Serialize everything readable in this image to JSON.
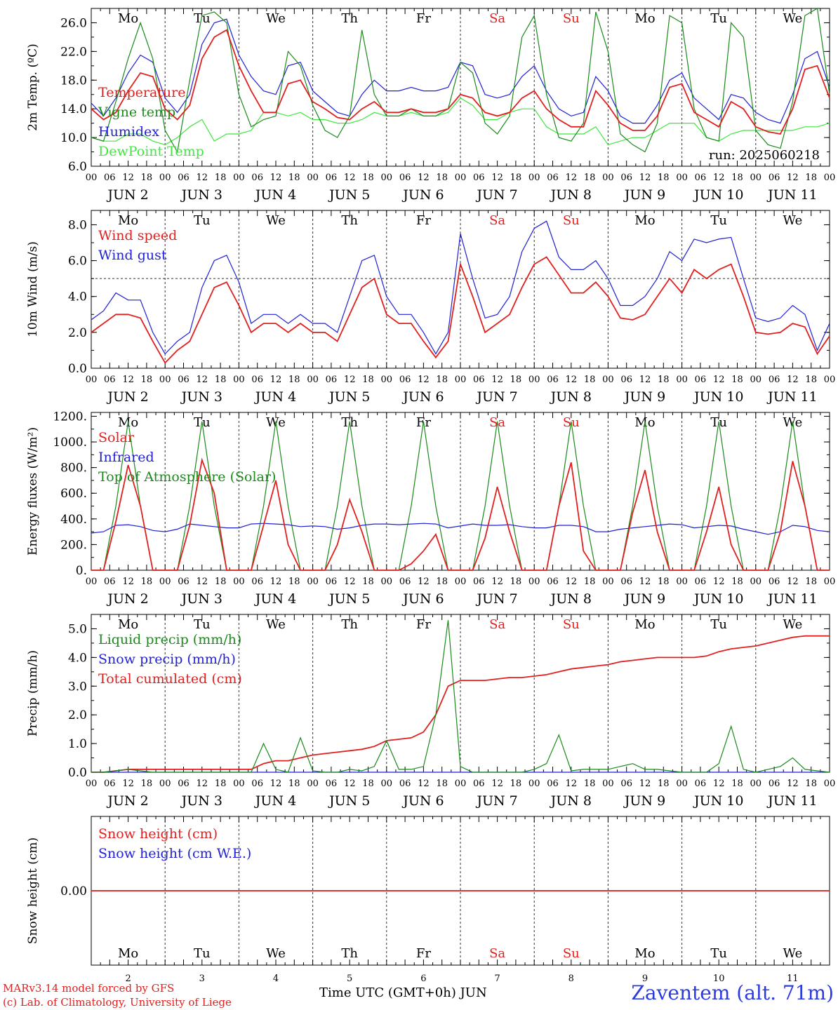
{
  "colors": {
    "red": "#e0201f",
    "blue": "#1f1fd6",
    "green": "#1a8a1a",
    "lightgreen": "#3ee83e",
    "axis": "#000000",
    "grid": "#333333"
  },
  "days": {
    "weekdays": [
      "Mo",
      "Tu",
      "We",
      "Th",
      "Fr",
      "Sa",
      "Su",
      "Mo",
      "Tu",
      "We"
    ],
    "weekday_colors": [
      "black",
      "black",
      "black",
      "black",
      "black",
      "red",
      "red",
      "black",
      "black",
      "black"
    ],
    "dates": [
      "JUN  2",
      "JUN  3",
      "JUN  4",
      "JUN  5",
      "JUN  6",
      "JUN  7",
      "JUN  8",
      "JUN  9",
      "JUN 10",
      "JUN 11"
    ],
    "day_numbers": [
      "2",
      "3",
      "4",
      "5",
      "6",
      "7",
      "8",
      "9",
      "10",
      "11"
    ],
    "hour_ticks": [
      "00",
      "06",
      "12",
      "18"
    ],
    "final_tick": "00"
  },
  "footer": {
    "model": "MARv3.14 model forced by GFS",
    "lab": "(c) Lab. of Climatology, University of Liege",
    "axis_title": "Time UTC (GMT+0h) JUN",
    "station": "Zaventem (alt. 71m)"
  },
  "chart_data": [
    {
      "type": "line",
      "ylabel": "2m Temp. (ºC)",
      "ylim": [
        6,
        28
      ],
      "yticks": [
        "6.0",
        "10.0",
        "14.0",
        "18.0",
        "22.0",
        "26.0"
      ],
      "annotation": "run: 2025060218",
      "legend_placement": "left",
      "series": [
        {
          "name": "Temperature",
          "color": "red",
          "values": [
            14.0,
            12.5,
            13.5,
            16.5,
            19.0,
            18.5,
            14.0,
            12.5,
            14.5,
            21.0,
            24.0,
            25.0,
            20.0,
            16.5,
            13.5,
            13.5,
            17.5,
            18.0,
            15.0,
            14.0,
            12.8,
            12.5,
            14.0,
            15.0,
            13.5,
            13.5,
            14.0,
            13.5,
            13.5,
            14.0,
            16.0,
            15.5,
            13.5,
            13.0,
            13.5,
            15.5,
            16.5,
            14.0,
            12.5,
            11.5,
            11.5,
            16.5,
            14.5,
            12.0,
            11.0,
            11.0,
            13.0,
            17.0,
            17.5,
            13.5,
            12.5,
            11.5,
            15.0,
            14.0,
            11.5,
            10.8,
            10.5,
            14.0,
            19.5,
            20.0,
            15.5
          ]
        },
        {
          "name": "Vigne temp",
          "color": "green",
          "values": [
            10.0,
            9.5,
            15.0,
            21.0,
            26.0,
            21.0,
            11.0,
            8.0,
            18.0,
            27.0,
            27.5,
            26.0,
            16.0,
            11.5,
            12.5,
            13.0,
            22.0,
            20.0,
            14.5,
            11.0,
            10.0,
            13.0,
            25.0,
            16.0,
            13.0,
            13.0,
            14.0,
            13.0,
            13.0,
            14.0,
            20.5,
            19.0,
            12.0,
            10.5,
            13.0,
            24.0,
            27.0,
            16.0,
            10.0,
            9.5,
            12.0,
            27.5,
            22.0,
            10.5,
            9.0,
            8.0,
            12.0,
            27.0,
            26.0,
            14.0,
            10.0,
            9.5,
            26.0,
            24.0,
            11.0,
            9.0,
            8.5,
            15.0,
            27.0,
            28.0,
            16.0
          ]
        },
        {
          "name": "Humidex",
          "color": "blue",
          "values": [
            14.8,
            13.0,
            15.5,
            19.0,
            21.5,
            20.5,
            15.5,
            13.5,
            16.0,
            23.0,
            26.0,
            26.5,
            21.5,
            18.5,
            16.5,
            16.0,
            20.0,
            20.5,
            16.5,
            15.0,
            13.5,
            13.0,
            16.0,
            18.0,
            16.5,
            16.5,
            17.0,
            16.5,
            16.5,
            17.0,
            20.5,
            20.0,
            16.0,
            15.5,
            16.0,
            18.5,
            20.0,
            16.5,
            14.0,
            13.0,
            13.5,
            18.5,
            16.5,
            13.0,
            12.0,
            12.0,
            14.5,
            18.0,
            19.0,
            15.5,
            14.0,
            12.5,
            16.0,
            15.5,
            13.5,
            12.5,
            12.0,
            16.0,
            21.0,
            22.0,
            17.0
          ]
        },
        {
          "name": "DewPoint Temp",
          "color": "lightgreen",
          "values": [
            10.0,
            9.5,
            9.5,
            10.5,
            10.5,
            9.5,
            9.0,
            10.0,
            11.5,
            12.5,
            9.5,
            10.5,
            10.5,
            11.0,
            13.5,
            13.5,
            13.0,
            13.5,
            12.5,
            12.5,
            12.0,
            12.0,
            12.5,
            13.5,
            13.0,
            13.0,
            13.5,
            13.0,
            13.0,
            13.5,
            15.5,
            14.5,
            12.5,
            12.5,
            13.5,
            14.0,
            14.0,
            11.5,
            10.5,
            10.5,
            10.5,
            11.5,
            9.0,
            9.5,
            10.0,
            10.0,
            11.0,
            12.0,
            12.0,
            12.0,
            10.0,
            9.5,
            10.5,
            11.0,
            11.0,
            11.0,
            11.0,
            11.0,
            11.5,
            11.5,
            12.0
          ]
        }
      ]
    },
    {
      "type": "line",
      "ylabel": "10m Wind (m/s)",
      "ylim": [
        0,
        8.8
      ],
      "yticks": [
        "0.0",
        "2.0",
        "4.0",
        "6.0",
        "8.0"
      ],
      "reference_line": 5.0,
      "legend_placement": "top-left",
      "series": [
        {
          "name": "Wind speed",
          "color": "red",
          "values": [
            2.0,
            2.5,
            3.0,
            3.0,
            2.8,
            1.5,
            0.3,
            1.0,
            1.5,
            3.0,
            4.5,
            4.8,
            3.5,
            2.0,
            2.5,
            2.5,
            2.0,
            2.5,
            2.0,
            2.0,
            1.5,
            3.0,
            4.5,
            5.0,
            3.0,
            2.5,
            2.5,
            1.5,
            0.6,
            1.5,
            5.8,
            4.0,
            2.0,
            2.5,
            3.0,
            4.5,
            5.8,
            6.2,
            5.2,
            4.2,
            4.2,
            4.8,
            4.0,
            2.8,
            2.7,
            3.0,
            4.0,
            5.0,
            4.2,
            5.5,
            5.0,
            5.5,
            5.8,
            4.0,
            2.0,
            1.9,
            2.0,
            2.5,
            2.3,
            0.8,
            1.8
          ]
        },
        {
          "name": "Wind gust",
          "color": "blue",
          "values": [
            2.7,
            3.2,
            4.2,
            3.8,
            3.8,
            2.0,
            0.8,
            1.5,
            2.0,
            4.5,
            6.0,
            6.3,
            4.8,
            2.5,
            3.0,
            3.0,
            2.5,
            3.0,
            2.5,
            2.5,
            2.0,
            4.0,
            6.0,
            6.3,
            4.0,
            3.0,
            3.0,
            2.0,
            0.8,
            2.0,
            7.5,
            5.0,
            2.8,
            3.0,
            4.0,
            6.5,
            7.8,
            8.2,
            6.2,
            5.5,
            5.5,
            6.0,
            5.0,
            3.5,
            3.5,
            4.0,
            5.0,
            6.5,
            6.0,
            7.2,
            7.0,
            7.2,
            7.3,
            5.0,
            2.8,
            2.6,
            2.8,
            3.5,
            3.0,
            1.0,
            2.5
          ]
        }
      ]
    },
    {
      "type": "line",
      "ylabel": "Energy fluxes (W/m²)",
      "ylim": [
        0,
        1230
      ],
      "yticks": [
        "0.",
        "200.",
        "400.",
        "600.",
        "800.",
        "1000.",
        "1200."
      ],
      "legend_placement": "top-left",
      "series": [
        {
          "name": "Solar",
          "color": "red",
          "values": [
            0,
            0,
            380,
            820,
            500,
            0,
            0,
            0,
            350,
            860,
            600,
            0,
            0,
            0,
            350,
            700,
            200,
            0,
            0,
            0,
            200,
            550,
            300,
            0,
            0,
            0,
            50,
            150,
            280,
            0,
            0,
            0,
            250,
            650,
            300,
            0,
            0,
            0,
            500,
            840,
            150,
            0,
            0,
            0,
            450,
            780,
            300,
            0,
            0,
            0,
            300,
            650,
            200,
            0,
            0,
            0,
            300,
            850,
            500,
            0,
            0
          ]
        },
        {
          "name": "Infrared",
          "color": "blue",
          "values": [
            290,
            300,
            350,
            355,
            340,
            310,
            300,
            320,
            360,
            350,
            340,
            330,
            330,
            360,
            365,
            360,
            355,
            340,
            345,
            340,
            320,
            330,
            350,
            360,
            360,
            355,
            360,
            365,
            360,
            330,
            345,
            360,
            350,
            350,
            355,
            340,
            330,
            330,
            350,
            350,
            340,
            300,
            300,
            320,
            330,
            340,
            350,
            360,
            355,
            330,
            340,
            350,
            345,
            320,
            300,
            280,
            300,
            350,
            340,
            310,
            300
          ]
        },
        {
          "name": "Top of Atmosphere (Solar)",
          "color": "green",
          "values": [
            0,
            0,
            500,
            1160,
            500,
            0,
            0,
            0,
            500,
            1160,
            500,
            0,
            0,
            0,
            500,
            1160,
            500,
            0,
            0,
            0,
            500,
            1160,
            500,
            0,
            0,
            0,
            500,
            1160,
            500,
            0,
            0,
            0,
            500,
            1160,
            500,
            0,
            0,
            0,
            500,
            1160,
            500,
            0,
            0,
            0,
            500,
            1160,
            500,
            0,
            0,
            0,
            500,
            1160,
            500,
            0,
            0,
            0,
            500,
            1160,
            500,
            0,
            0
          ]
        }
      ]
    },
    {
      "type": "line",
      "ylabel": "Precip (mm/h)",
      "ylim": [
        0,
        5.5
      ],
      "yticks": [
        "0.0",
        "1.0",
        "2.0",
        "3.0",
        "4.0",
        "5.0"
      ],
      "legend_placement": "top-left",
      "series": [
        {
          "name": "Liquid precip (mm/h)",
          "color": "green",
          "values": [
            0,
            0,
            0.05,
            0.1,
            0.05,
            0,
            0,
            0,
            0,
            0,
            0,
            0,
            0,
            0,
            1.0,
            0.1,
            0,
            1.2,
            0.05,
            0,
            0,
            0.1,
            0.05,
            0.2,
            1.1,
            0.1,
            0.1,
            0.2,
            2.0,
            5.3,
            0.2,
            0,
            0,
            0,
            0,
            0,
            0.1,
            0.3,
            1.3,
            0.05,
            0.1,
            0.1,
            0.1,
            0.2,
            0.3,
            0.1,
            0.1,
            0.05,
            0,
            0,
            0,
            0.3,
            1.6,
            0.1,
            0,
            0.1,
            0.2,
            0.5,
            0.1,
            0.05,
            0
          ]
        },
        {
          "name": "Snow precip (mm/h)",
          "color": "blue",
          "values": [
            0,
            0,
            0,
            0,
            0,
            0,
            0,
            0,
            0,
            0,
            0,
            0,
            0,
            0,
            0,
            0,
            0,
            0,
            0,
            0,
            0,
            0,
            0,
            0,
            0,
            0,
            0,
            0,
            0,
            0,
            0,
            0,
            0,
            0,
            0,
            0,
            0,
            0,
            0,
            0,
            0,
            0,
            0,
            0,
            0,
            0,
            0,
            0,
            0,
            0,
            0,
            0,
            0,
            0,
            0,
            0,
            0,
            0,
            0,
            0,
            0
          ]
        },
        {
          "name": "Total cumulated (cm)",
          "color": "red",
          "values": [
            0,
            0,
            0.05,
            0.1,
            0.1,
            0.1,
            0.1,
            0.1,
            0.1,
            0.1,
            0.1,
            0.1,
            0.1,
            0.1,
            0.3,
            0.4,
            0.4,
            0.5,
            0.6,
            0.65,
            0.7,
            0.75,
            0.8,
            0.9,
            1.1,
            1.15,
            1.2,
            1.4,
            2.0,
            3.0,
            3.2,
            3.2,
            3.2,
            3.25,
            3.3,
            3.3,
            3.35,
            3.4,
            3.5,
            3.6,
            3.65,
            3.7,
            3.75,
            3.85,
            3.9,
            3.95,
            4.0,
            4.0,
            4.0,
            4.0,
            4.05,
            4.2,
            4.3,
            4.35,
            4.4,
            4.5,
            4.6,
            4.7,
            4.75,
            4.75,
            4.75
          ]
        }
      ]
    },
    {
      "type": "line",
      "ylabel": "Snow height (cm)",
      "ylim": [
        -1,
        1
      ],
      "yticks": [
        "0.00"
      ],
      "legend_placement": "top-left",
      "series": [
        {
          "name": "Snow height (cm)",
          "color": "red",
          "values": [
            0,
            0,
            0,
            0,
            0,
            0,
            0,
            0,
            0,
            0,
            0,
            0,
            0,
            0,
            0,
            0,
            0,
            0,
            0,
            0,
            0,
            0,
            0,
            0,
            0,
            0,
            0,
            0,
            0,
            0,
            0,
            0,
            0,
            0,
            0,
            0,
            0,
            0,
            0,
            0,
            0,
            0,
            0,
            0,
            0,
            0,
            0,
            0,
            0,
            0,
            0,
            0,
            0,
            0,
            0,
            0,
            0,
            0,
            0,
            0,
            0
          ]
        },
        {
          "name": "Snow height (cm W.E.)",
          "color": "blue",
          "values": [
            0,
            0,
            0,
            0,
            0,
            0,
            0,
            0,
            0,
            0,
            0,
            0,
            0,
            0,
            0,
            0,
            0,
            0,
            0,
            0,
            0,
            0,
            0,
            0,
            0,
            0,
            0,
            0,
            0,
            0,
            0,
            0,
            0,
            0,
            0,
            0,
            0,
            0,
            0,
            0,
            0,
            0,
            0,
            0,
            0,
            0,
            0,
            0,
            0,
            0,
            0,
            0,
            0,
            0,
            0,
            0,
            0,
            0,
            0,
            0,
            0
          ]
        }
      ]
    }
  ]
}
